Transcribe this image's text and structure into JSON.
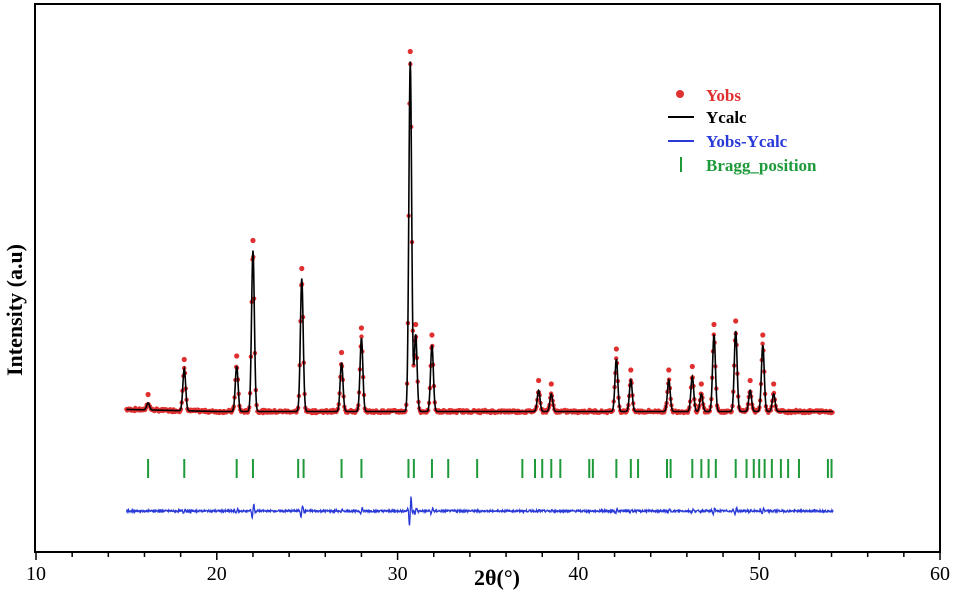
{
  "chart_data": {
    "type": "line",
    "xlabel": "2θ(°)",
    "ylabel": "Intensity (a.u)",
    "xlim": [
      10,
      60
    ],
    "x_ticks": [
      "10",
      "20",
      "30",
      "40",
      "50",
      "60"
    ],
    "grid": false,
    "legend_position": "top-right",
    "legend": [
      {
        "label": "Yobs",
        "color": "#e03030",
        "marker": "dot"
      },
      {
        "label": "Ycalc",
        "color": "#000000",
        "marker": "line"
      },
      {
        "label": "Yobs-Ycalc",
        "color": "#2a3ad8",
        "marker": "line"
      },
      {
        "label": "Bragg_position",
        "color": "#1f9a3a",
        "marker": "bar"
      }
    ],
    "x_range_data": [
      15,
      54.1
    ],
    "background_level": 0.03,
    "peaks": [
      {
        "x": 16.2,
        "intensity": 0.02
      },
      {
        "x": 18.2,
        "intensity": 0.12
      },
      {
        "x": 21.1,
        "intensity": 0.13
      },
      {
        "x": 22.0,
        "intensity": 0.46
      },
      {
        "x": 24.7,
        "intensity": 0.38
      },
      {
        "x": 26.9,
        "intensity": 0.14
      },
      {
        "x": 28.0,
        "intensity": 0.21
      },
      {
        "x": 30.7,
        "intensity": 1.0
      },
      {
        "x": 31.0,
        "intensity": 0.22
      },
      {
        "x": 31.9,
        "intensity": 0.19
      },
      {
        "x": 37.8,
        "intensity": 0.06
      },
      {
        "x": 38.5,
        "intensity": 0.05
      },
      {
        "x": 42.1,
        "intensity": 0.15
      },
      {
        "x": 42.9,
        "intensity": 0.09
      },
      {
        "x": 45.0,
        "intensity": 0.09
      },
      {
        "x": 46.3,
        "intensity": 0.1
      },
      {
        "x": 46.8,
        "intensity": 0.05
      },
      {
        "x": 47.5,
        "intensity": 0.22
      },
      {
        "x": 48.7,
        "intensity": 0.23
      },
      {
        "x": 49.5,
        "intensity": 0.06
      },
      {
        "x": 50.2,
        "intensity": 0.19
      },
      {
        "x": 50.8,
        "intensity": 0.05
      }
    ],
    "bragg_positions": [
      16.2,
      18.2,
      21.1,
      22.0,
      24.5,
      24.8,
      26.9,
      28.0,
      30.6,
      30.9,
      31.9,
      32.8,
      34.4,
      36.9,
      37.6,
      38.0,
      38.5,
      39.0,
      40.6,
      40.8,
      42.1,
      42.9,
      43.3,
      44.9,
      45.1,
      46.3,
      46.8,
      47.2,
      47.6,
      48.7,
      49.3,
      49.7,
      50.0,
      50.3,
      50.7,
      51.2,
      51.6,
      52.2,
      53.8,
      54.0
    ]
  }
}
